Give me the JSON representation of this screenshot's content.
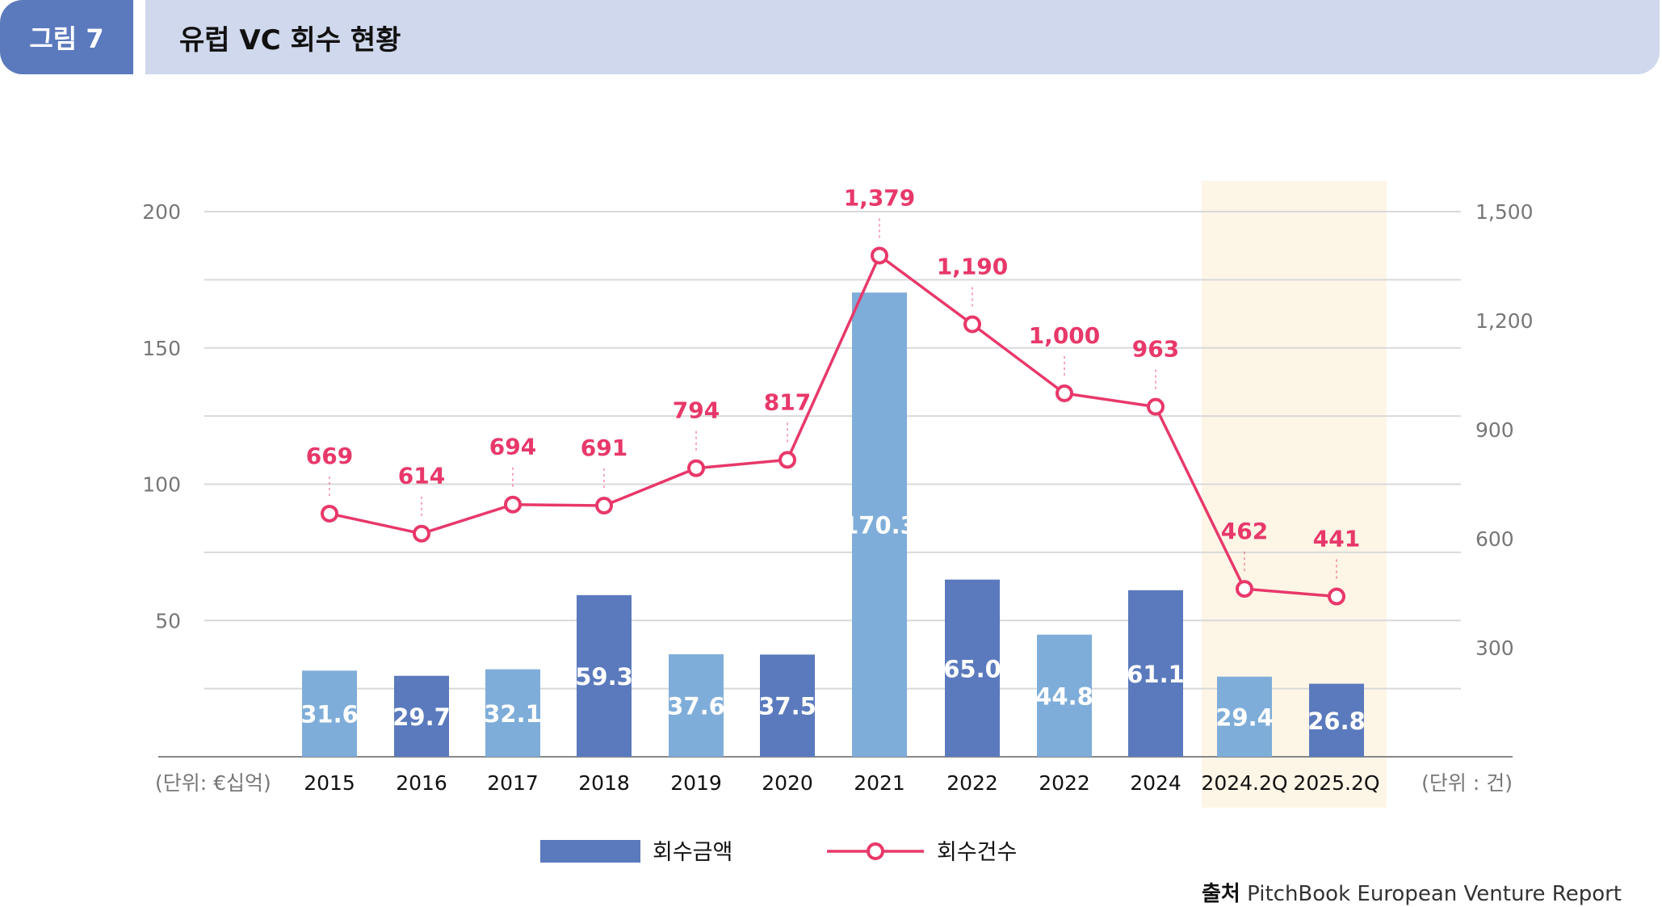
{
  "header": {
    "figure_label": "그림 7",
    "title": "유럽 VC 회수 현황"
  },
  "source": {
    "label": "출처",
    "text": "PitchBook European Venture Report"
  },
  "chart_data": {
    "type": "bar+line",
    "title": "유럽 VC 회수 현황",
    "categories": [
      "2015",
      "2016",
      "2017",
      "2018",
      "2019",
      "2020",
      "2021",
      "2022",
      "2022",
      "2024",
      "2024.2Q",
      "2025.2Q"
    ],
    "highlighted_categories": [
      "2024.2Q",
      "2025.2Q"
    ],
    "series": [
      {
        "name": "회수금액",
        "type": "bar",
        "axis": "left",
        "values": [
          31.6,
          29.7,
          32.1,
          59.3,
          37.6,
          37.5,
          170.3,
          65.0,
          44.8,
          61.1,
          29.4,
          26.8
        ],
        "labels": [
          "31.6",
          "29.7",
          "32.1",
          "59.3",
          "37.6",
          "37.5",
          "170.3",
          "65.0",
          "44.8",
          "61.1",
          "29.4",
          "26.8"
        ]
      },
      {
        "name": "회수건수",
        "type": "line",
        "axis": "right",
        "values": [
          669,
          614,
          694,
          691,
          794,
          817,
          1379,
          1190,
          1000,
          963,
          462,
          441
        ],
        "labels": [
          "669",
          "614",
          "694",
          "691",
          "794",
          "817",
          "1,379",
          "1,190",
          "1,000",
          "963",
          "462",
          "441"
        ]
      }
    ],
    "left_axis": {
      "unit_label": "(단위: €십억)",
      "ylim": [
        0,
        200
      ],
      "ticks": [
        "50",
        "100",
        "150",
        "200"
      ],
      "tick_values": [
        50,
        100,
        150,
        200
      ]
    },
    "right_axis": {
      "unit_label": "(단위 : 건)",
      "ylim": [
        0,
        1500
      ],
      "ticks": [
        "300",
        "600",
        "900",
        "1,200",
        "1,500"
      ],
      "tick_values": [
        300,
        600,
        900,
        1200,
        1500
      ]
    },
    "grid": true,
    "legend_position": "bottom-center",
    "colors": {
      "bar_light": "#7fadd9",
      "bar_dark": "#5b7abd",
      "line": "#e8386a",
      "highlight": "#fdf5e6",
      "grid": "#d9d9d9"
    }
  }
}
